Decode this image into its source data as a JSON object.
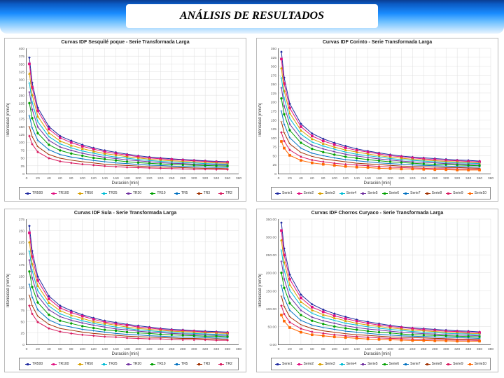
{
  "header": {
    "title": "ANÁLISIS DE RESULTADOS"
  },
  "chart_common": {
    "x_label": "Duración [min]",
    "y_label": "Intensidad [mm/h]",
    "x_ticks": [
      0,
      20,
      40,
      60,
      80,
      100,
      120,
      140,
      160,
      180,
      200,
      220,
      240,
      260,
      280,
      300,
      320,
      340,
      360,
      380
    ],
    "grid_color": "#dddddd",
    "axis_color": "#555555",
    "x_values": [
      5,
      10,
      20,
      40,
      60,
      80,
      100,
      120,
      140,
      160,
      180,
      200,
      220,
      240,
      260,
      280,
      300,
      320,
      340,
      360
    ]
  },
  "series_colors": [
    "#1f2aa0",
    "#e01080",
    "#d9a000",
    "#00bcd4",
    "#7030a0",
    "#00a000",
    "#0070c0",
    "#a03000",
    "#d81b60",
    "#ff6600"
  ],
  "series_markers": [
    "diamond",
    "square",
    "triangle",
    "x",
    "star",
    "circle",
    "plus",
    "dash",
    "diamond",
    "square"
  ],
  "charts": [
    {
      "pos": "tl",
      "title": "Curvas IDF Sesquilé poque - Serie Transformada Larga",
      "ylim": [
        0,
        400
      ],
      "y_ticks": [
        0,
        25,
        50,
        75,
        100,
        125,
        150,
        175,
        200,
        225,
        250,
        275,
        300,
        325,
        350,
        375,
        400
      ],
      "legend_labels": [
        "TR500",
        "TR100",
        "TR50",
        "TR25",
        "TR20",
        "TR10",
        "TR5",
        "TR3",
        "TR2"
      ],
      "series_values": [
        [
          370,
          290,
          210,
          150,
          120,
          105,
          92,
          82,
          74,
          68,
          62,
          57,
          53,
          50,
          47,
          45,
          43,
          41,
          39,
          38
        ],
        [
          350,
          275,
          200,
          142,
          114,
          99,
          87,
          78,
          70,
          64,
          59,
          54,
          50,
          47,
          45,
          43,
          41,
          39,
          37,
          36
        ],
        [
          320,
          252,
          183,
          130,
          104,
          90,
          80,
          71,
          64,
          59,
          54,
          50,
          46,
          43,
          41,
          39,
          37,
          36,
          34,
          33
        ],
        [
          290,
          228,
          166,
          118,
          95,
          82,
          72,
          65,
          58,
          53,
          49,
          45,
          42,
          39,
          37,
          35,
          34,
          32,
          31,
          30
        ],
        [
          260,
          205,
          149,
          106,
          85,
          74,
          65,
          58,
          52,
          48,
          44,
          41,
          38,
          35,
          33,
          32,
          30,
          29,
          28,
          27
        ],
        [
          225,
          177,
          129,
          92,
          74,
          64,
          57,
          50,
          46,
          42,
          38,
          35,
          33,
          31,
          29,
          28,
          27,
          26,
          25,
          24
        ],
        [
          185,
          146,
          106,
          76,
          61,
          53,
          47,
          42,
          38,
          34,
          32,
          29,
          27,
          26,
          24,
          23,
          22,
          21,
          20,
          20
        ],
        [
          150,
          118,
          86,
          61,
          49,
          43,
          38,
          34,
          30,
          28,
          26,
          24,
          22,
          21,
          20,
          19,
          18,
          17,
          17,
          16
        ],
        [
          120,
          94,
          69,
          49,
          39,
          34,
          30,
          27,
          24,
          22,
          20,
          19,
          18,
          17,
          16,
          15,
          14,
          14,
          13,
          13
        ]
      ]
    },
    {
      "pos": "tr",
      "title": "Curvas IDF Corinto - Serie Transformada Larga",
      "ylim": [
        0,
        350
      ],
      "y_ticks": [
        0,
        25,
        50,
        75,
        100,
        125,
        150,
        175,
        200,
        225,
        250,
        275,
        300,
        325,
        350
      ],
      "legend_labels": [
        "Serie1",
        "Serie2",
        "Serie3",
        "Serie4",
        "Serie5",
        "Serie6",
        "Serie7",
        "Serie8",
        "Serie9",
        "Serie10"
      ],
      "series_values": [
        [
          340,
          268,
          195,
          139,
          112,
          97,
          86,
          77,
          69,
          63,
          58,
          53,
          49,
          46,
          44,
          42,
          40,
          38,
          37,
          35
        ],
        [
          320,
          252,
          183,
          131,
          105,
          91,
          81,
          72,
          65,
          60,
          55,
          50,
          47,
          44,
          41,
          39,
          37,
          36,
          34,
          33
        ],
        [
          295,
          232,
          169,
          121,
          97,
          84,
          74,
          66,
          60,
          55,
          50,
          46,
          43,
          40,
          38,
          36,
          34,
          33,
          31,
          30
        ],
        [
          268,
          211,
          154,
          110,
          88,
          77,
          68,
          60,
          54,
          50,
          46,
          42,
          39,
          37,
          35,
          33,
          31,
          30,
          29,
          28
        ],
        [
          240,
          189,
          138,
          98,
          79,
          69,
          61,
          54,
          49,
          45,
          41,
          38,
          35,
          33,
          31,
          30,
          28,
          27,
          26,
          25
        ],
        [
          210,
          166,
          121,
          86,
          69,
          60,
          53,
          47,
          43,
          39,
          36,
          33,
          31,
          29,
          27,
          26,
          25,
          24,
          23,
          22
        ],
        [
          175,
          138,
          100,
          71,
          57,
          50,
          44,
          39,
          36,
          33,
          30,
          28,
          26,
          24,
          23,
          22,
          21,
          20,
          19,
          18
        ],
        [
          145,
          114,
          83,
          59,
          48,
          41,
          37,
          33,
          29,
          27,
          25,
          23,
          21,
          20,
          19,
          18,
          17,
          17,
          16,
          15
        ],
        [
          115,
          91,
          66,
          47,
          38,
          33,
          29,
          26,
          24,
          22,
          20,
          18,
          17,
          16,
          15,
          14,
          14,
          13,
          13,
          12
        ],
        [
          90,
          71,
          51,
          37,
          30,
          26,
          23,
          20,
          18,
          17,
          15,
          14,
          13,
          13,
          12,
          11,
          11,
          10,
          10,
          10
        ]
      ]
    },
    {
      "pos": "bl",
      "title": "Curvas IDF Sula - Serie Transformada Larga",
      "ylim": [
        0,
        275
      ],
      "y_ticks": [
        0,
        25,
        50,
        75,
        100,
        125,
        150,
        175,
        200,
        225,
        250,
        275
      ],
      "legend_labels": [
        "TR500",
        "TR100",
        "TR50",
        "TR25",
        "TR20",
        "TR10",
        "TR5",
        "TR3",
        "TR2"
      ],
      "series_values": [
        [
          260,
          205,
          149,
          106,
          85,
          74,
          65,
          58,
          52,
          48,
          44,
          41,
          38,
          35,
          33,
          32,
          30,
          29,
          28,
          27
        ],
        [
          245,
          193,
          140,
          100,
          80,
          70,
          62,
          55,
          49,
          45,
          42,
          38,
          36,
          33,
          31,
          30,
          29,
          27,
          26,
          25
        ],
        [
          225,
          177,
          129,
          92,
          74,
          64,
          57,
          50,
          46,
          42,
          38,
          35,
          33,
          31,
          29,
          28,
          27,
          26,
          25,
          24
        ],
        [
          205,
          162,
          118,
          84,
          67,
          58,
          52,
          46,
          42,
          38,
          35,
          32,
          30,
          28,
          27,
          25,
          24,
          23,
          22,
          21
        ],
        [
          185,
          146,
          106,
          76,
          61,
          53,
          47,
          42,
          38,
          34,
          32,
          29,
          27,
          26,
          24,
          23,
          22,
          21,
          20,
          20
        ],
        [
          160,
          126,
          92,
          65,
          52,
          46,
          40,
          36,
          32,
          30,
          27,
          25,
          24,
          22,
          21,
          20,
          19,
          18,
          18,
          17
        ],
        [
          132,
          104,
          76,
          54,
          43,
          38,
          33,
          30,
          27,
          24,
          22,
          21,
          19,
          18,
          17,
          16,
          16,
          15,
          14,
          14
        ],
        [
          108,
          85,
          62,
          44,
          35,
          31,
          27,
          24,
          22,
          20,
          18,
          17,
          16,
          15,
          14,
          13,
          13,
          12,
          12,
          11
        ],
        [
          85,
          67,
          49,
          35,
          28,
          24,
          21,
          19,
          17,
          16,
          14,
          13,
          12,
          12,
          11,
          10,
          10,
          10,
          9,
          9
        ]
      ]
    },
    {
      "pos": "br",
      "title": "Curvas IDF Chorros Curyaco - Serie Transformada Larga",
      "ylim": [
        0,
        350
      ],
      "y_ticks": [
        0,
        50,
        100,
        150,
        200,
        250,
        300,
        350
      ],
      "y_tick_format": "decimal",
      "legend_labels": [
        "Serie1",
        "Serie2",
        "Serie3",
        "Serie4",
        "Serie5",
        "Serie6",
        "Serie7",
        "Serie8",
        "Serie9",
        "Serie10"
      ],
      "series_values": [
        [
          340,
          268,
          195,
          139,
          112,
          97,
          86,
          77,
          69,
          63,
          58,
          53,
          49,
          46,
          44,
          42,
          40,
          38,
          37,
          35
        ],
        [
          318,
          250,
          182,
          130,
          104,
          91,
          80,
          72,
          65,
          59,
          54,
          50,
          47,
          44,
          41,
          39,
          37,
          36,
          34,
          33
        ],
        [
          292,
          230,
          167,
          119,
          96,
          83,
          74,
          66,
          59,
          54,
          50,
          46,
          43,
          40,
          38,
          36,
          34,
          33,
          31,
          30
        ],
        [
          263,
          207,
          151,
          108,
          87,
          75,
          67,
          59,
          54,
          49,
          45,
          42,
          39,
          36,
          34,
          33,
          31,
          30,
          29,
          27
        ],
        [
          232,
          183,
          133,
          95,
          76,
          66,
          59,
          52,
          47,
          43,
          40,
          37,
          34,
          32,
          30,
          29,
          27,
          26,
          25,
          24
        ],
        [
          200,
          158,
          115,
          82,
          66,
          57,
          50,
          45,
          41,
          37,
          34,
          32,
          29,
          27,
          26,
          25,
          24,
          23,
          22,
          21
        ],
        [
          165,
          130,
          95,
          67,
          54,
          47,
          42,
          37,
          34,
          31,
          28,
          26,
          24,
          23,
          22,
          21,
          20,
          19,
          18,
          17
        ],
        [
          135,
          106,
          77,
          55,
          44,
          38,
          34,
          30,
          27,
          25,
          23,
          21,
          20,
          19,
          18,
          17,
          16,
          15,
          15,
          14
        ],
        [
          108,
          85,
          62,
          44,
          35,
          31,
          27,
          24,
          22,
          20,
          18,
          17,
          16,
          15,
          14,
          13,
          13,
          12,
          12,
          11
        ],
        [
          82,
          65,
          47,
          34,
          27,
          24,
          21,
          19,
          17,
          15,
          14,
          13,
          12,
          11,
          11,
          10,
          10,
          9,
          9,
          9
        ]
      ]
    }
  ]
}
